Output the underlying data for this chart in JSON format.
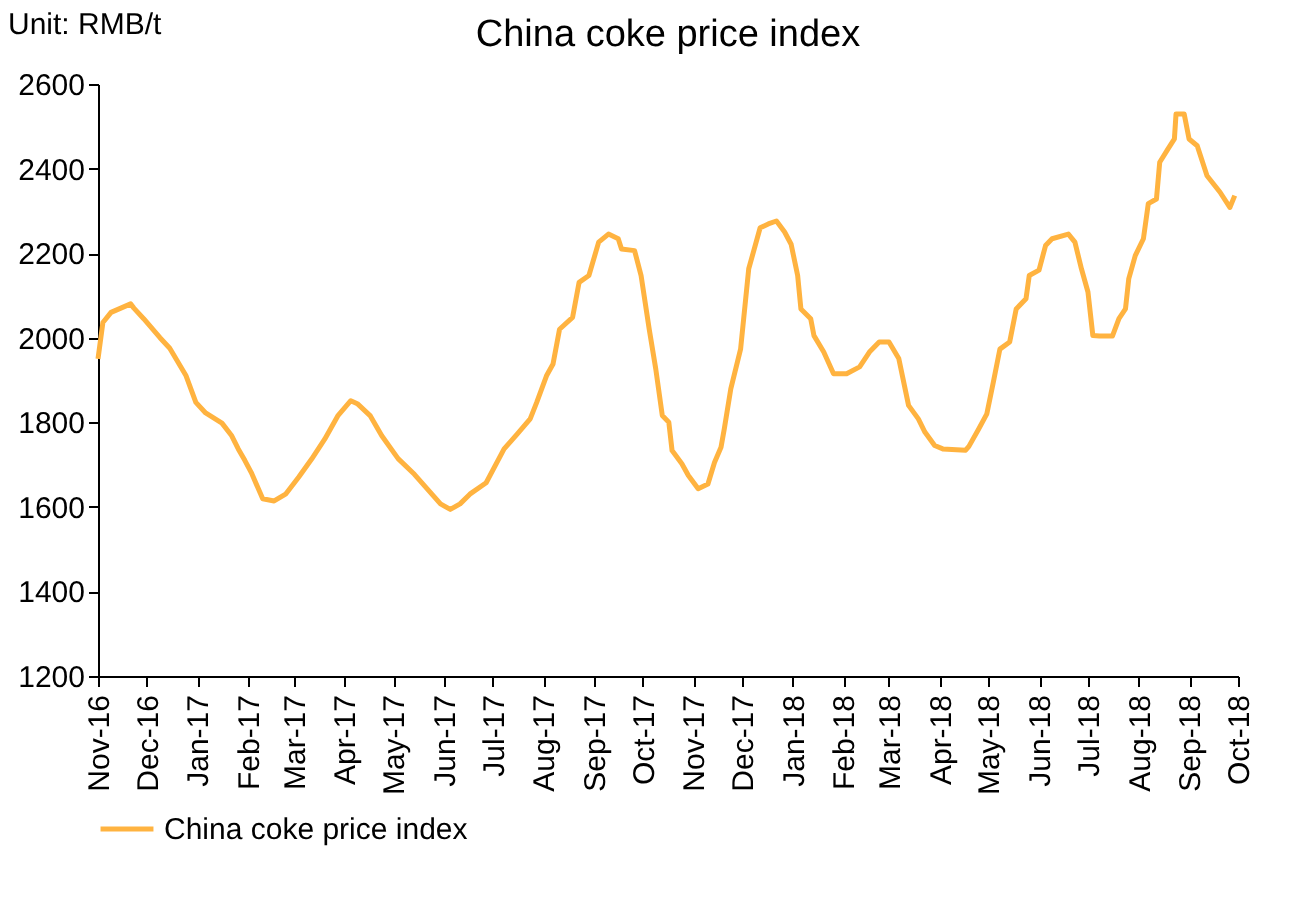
{
  "chart_data": {
    "type": "line",
    "title": "China coke price index",
    "annotations": [
      "Unit: RMB/t"
    ],
    "x": [
      "2016-11-01",
      "2016-11-04",
      "2016-11-09",
      "2016-11-21",
      "2016-11-23",
      "2016-11-29",
      "2016-12-09",
      "2016-12-15",
      "2016-12-25",
      "2016-12-31",
      "2017-01-06",
      "2017-01-16",
      "2017-01-22",
      "2017-01-26",
      "2017-01-30",
      "2017-02-03",
      "2017-02-10",
      "2017-02-17",
      "2017-02-24",
      "2017-03-04",
      "2017-03-12",
      "2017-03-20",
      "2017-03-28",
      "2017-04-05",
      "2017-04-09",
      "2017-04-17",
      "2017-04-24",
      "2017-05-04",
      "2017-05-14",
      "2017-05-22",
      "2017-05-30",
      "2017-06-05",
      "2017-06-11",
      "2017-06-17",
      "2017-06-27",
      "2017-07-08",
      "2017-07-16",
      "2017-07-24",
      "2017-07-28",
      "2017-08-03",
      "2017-08-07",
      "2017-08-11",
      "2017-08-19",
      "2017-08-23",
      "2017-08-29",
      "2017-09-04",
      "2017-09-10",
      "2017-09-16",
      "2017-09-18",
      "2017-09-26",
      "2017-09-30",
      "2017-10-05",
      "2017-10-09",
      "2017-10-13",
      "2017-10-17",
      "2017-10-19",
      "2017-10-25",
      "2017-10-29",
      "2017-11-04",
      "2017-11-10",
      "2017-11-14",
      "2017-11-18",
      "2017-11-20",
      "2017-11-24",
      "2017-11-30",
      "2017-12-05",
      "2017-12-12",
      "2017-12-17",
      "2017-12-22",
      "2017-12-27",
      "2017-12-31",
      "2018-01-04",
      "2018-01-06",
      "2018-01-12",
      "2018-01-14",
      "2018-01-20",
      "2018-01-26",
      "2018-02-03",
      "2018-02-11",
      "2018-02-17",
      "2018-02-23",
      "2018-03-01",
      "2018-03-07",
      "2018-03-13",
      "2018-03-19",
      "2018-03-23",
      "2018-03-29",
      "2018-04-03",
      "2018-04-17",
      "2018-04-19",
      "2018-04-25",
      "2018-04-30",
      "2018-05-04",
      "2018-05-08",
      "2018-05-14",
      "2018-05-18",
      "2018-05-24",
      "2018-05-26",
      "2018-06-01",
      "2018-06-05",
      "2018-06-09",
      "2018-06-19",
      "2018-06-23",
      "2018-06-27",
      "2018-07-01",
      "2018-07-04",
      "2018-07-08",
      "2018-07-16",
      "2018-07-20",
      "2018-07-24",
      "2018-07-26",
      "2018-07-30",
      "2018-08-04",
      "2018-08-07",
      "2018-08-12",
      "2018-08-14",
      "2018-08-19",
      "2018-08-23",
      "2018-08-24",
      "2018-08-29",
      "2018-09-01",
      "2018-09-06",
      "2018-09-12",
      "2018-09-20",
      "2018-09-26",
      "2018-09-29"
    ],
    "series": [
      {
        "name": "China coke price index",
        "color": "#ffb340",
        "values": [
          1950,
          2036,
          2060,
          2080,
          2070,
          2045,
          2000,
          1975,
          1910,
          1847,
          1822,
          1798,
          1768,
          1737,
          1710,
          1681,
          1619,
          1614,
          1630,
          1670,
          1713,
          1760,
          1815,
          1851,
          1844,
          1815,
          1768,
          1714,
          1677,
          1642,
          1607,
          1594,
          1607,
          1630,
          1657,
          1737,
          1772,
          1808,
          1847,
          1910,
          1938,
          2020,
          2048,
          2131,
          2147,
          2226,
          2245,
          2234,
          2210,
          2206,
          2147,
          2020,
          1926,
          1816,
          1800,
          1733,
          1702,
          1674,
          1643,
          1654,
          1705,
          1741,
          1784,
          1879,
          1973,
          2163,
          2260,
          2269,
          2276,
          2250,
          2221,
          2147,
          2068,
          2045,
          2005,
          1966,
          1915,
          1915,
          1931,
          1966,
          1990,
          1990,
          1951,
          1840,
          1808,
          1777,
          1745,
          1737,
          1734,
          1743,
          1784,
          1820,
          1895,
          1973,
          1990,
          2068,
          2092,
          2147,
          2160,
          2218,
          2234,
          2245,
          2226,
          2163,
          2108,
          2005,
          2004,
          2004,
          2045,
          2068,
          2139,
          2194,
          2234,
          2317,
          2328,
          2415,
          2446,
          2470,
          2529,
          2529,
          2470,
          2454,
          2383,
          2344,
          2308,
          2336
        ]
      }
    ],
    "xlim": [
      "2016-11-01",
      "2018-10-01"
    ],
    "xticks": [
      {
        "value": "2016-11-01",
        "label": "Nov-16"
      },
      {
        "value": "2016-12-01",
        "label": "Dec-16"
      },
      {
        "value": "2017-01-01",
        "label": "Jan-17"
      },
      {
        "value": "2017-02-01",
        "label": "Feb-17"
      },
      {
        "value": "2017-03-01",
        "label": "Mar-17"
      },
      {
        "value": "2017-04-01",
        "label": "Apr-17"
      },
      {
        "value": "2017-05-01",
        "label": "May-17"
      },
      {
        "value": "2017-06-01",
        "label": "Jun-17"
      },
      {
        "value": "2017-07-01",
        "label": "Jul-17"
      },
      {
        "value": "2017-08-01",
        "label": "Aug-17"
      },
      {
        "value": "2017-09-01",
        "label": "Sep-17"
      },
      {
        "value": "2017-10-01",
        "label": "Oct-17"
      },
      {
        "value": "2017-11-01",
        "label": "Nov-17"
      },
      {
        "value": "2017-12-01",
        "label": "Dec-17"
      },
      {
        "value": "2018-01-01",
        "label": "Jan-18"
      },
      {
        "value": "2018-02-01",
        "label": "Feb-18"
      },
      {
        "value": "2018-03-01",
        "label": "Mar-18"
      },
      {
        "value": "2018-04-01",
        "label": "Apr-18"
      },
      {
        "value": "2018-05-01",
        "label": "May-18"
      },
      {
        "value": "2018-06-01",
        "label": "Jun-18"
      },
      {
        "value": "2018-07-01",
        "label": "Jul-18"
      },
      {
        "value": "2018-08-01",
        "label": "Aug-18"
      },
      {
        "value": "2018-09-01",
        "label": "Sep-18"
      },
      {
        "value": "2018-10-01",
        "label": "Oct-18"
      }
    ],
    "ylim": [
      1200,
      2600
    ],
    "yticks": [
      1200,
      1400,
      1600,
      1800,
      2000,
      2200,
      2400,
      2600
    ],
    "grid": false,
    "legend": "bottom",
    "marker": "none",
    "line_style": "solid"
  }
}
